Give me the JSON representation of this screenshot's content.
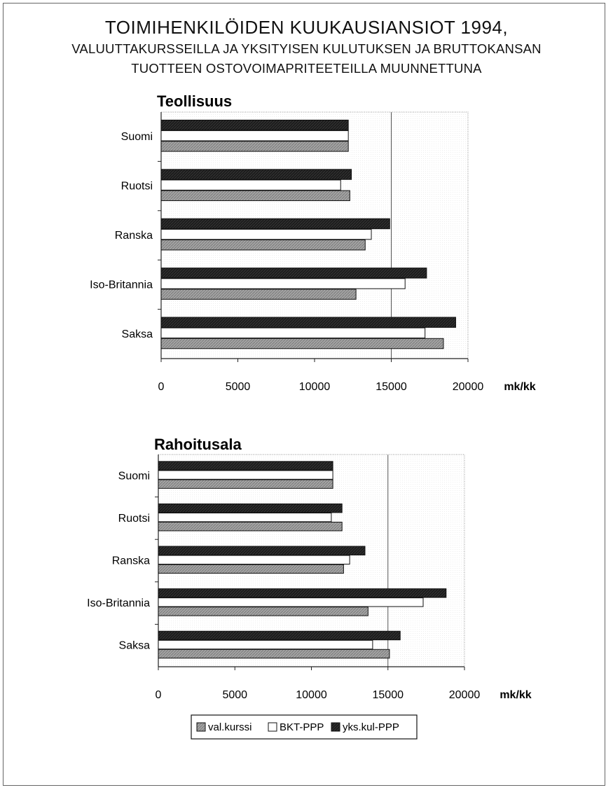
{
  "header": {
    "title": "TOIMIHENKILÖIDEN KUUKAUSIANSIOT 1994,",
    "subtitle_line1": "VALUUTTAKURSSEILLA JA YKSITYISEN KULUTUKSEN JA BRUTTOKANSAN",
    "subtitle_line2": "TUOTTEEN OSTOVOIMAPRITEETEILLA MUUNNETTUNA"
  },
  "legend": [
    {
      "label": "val.kurssi",
      "color": "#9a9a9a"
    },
    {
      "label": "BKT-PPP",
      "color": "#ffffff"
    },
    {
      "label": "yks.kul-PPP",
      "color": "#1e1e1e"
    }
  ],
  "chart_data": [
    {
      "type": "bar",
      "orientation": "horizontal",
      "title": "Teollisuus",
      "xlabel": "mk/kk",
      "xlim": [
        0,
        20000
      ],
      "xticks": [
        "0",
        "5000",
        "10000",
        "15000",
        "20000"
      ],
      "categories": [
        "Suomi",
        "Ruotsi",
        "Ranska",
        "Iso-Britannia",
        "Saksa"
      ],
      "series": [
        {
          "name": "yks.kul-PPP",
          "values": [
            12200,
            12400,
            14900,
            17300,
            19200
          ]
        },
        {
          "name": "BKT-PPP",
          "values": [
            12200,
            11700,
            13700,
            15900,
            17200
          ]
        },
        {
          "name": "val.kurssi",
          "values": [
            12200,
            12300,
            13300,
            12700,
            18400
          ]
        }
      ],
      "grid_x": [
        15000
      ]
    },
    {
      "type": "bar",
      "orientation": "horizontal",
      "title": "Rahoitusala",
      "xlabel": "mk/kk",
      "xlim": [
        0,
        20000
      ],
      "xticks": [
        "0",
        "5000",
        "10000",
        "15000",
        "20000"
      ],
      "categories": [
        "Suomi",
        "Ruotsi",
        "Ranska",
        "Iso-Britannia",
        "Saksa"
      ],
      "series": [
        {
          "name": "yks.kul-PPP",
          "values": [
            11400,
            12000,
            13500,
            18800,
            15800
          ]
        },
        {
          "name": "BKT-PPP",
          "values": [
            11400,
            11300,
            12500,
            17300,
            14000
          ]
        },
        {
          "name": "val.kurssi",
          "values": [
            11400,
            12000,
            12100,
            13700,
            15100
          ]
        }
      ],
      "grid_x": [
        15000
      ]
    }
  ]
}
